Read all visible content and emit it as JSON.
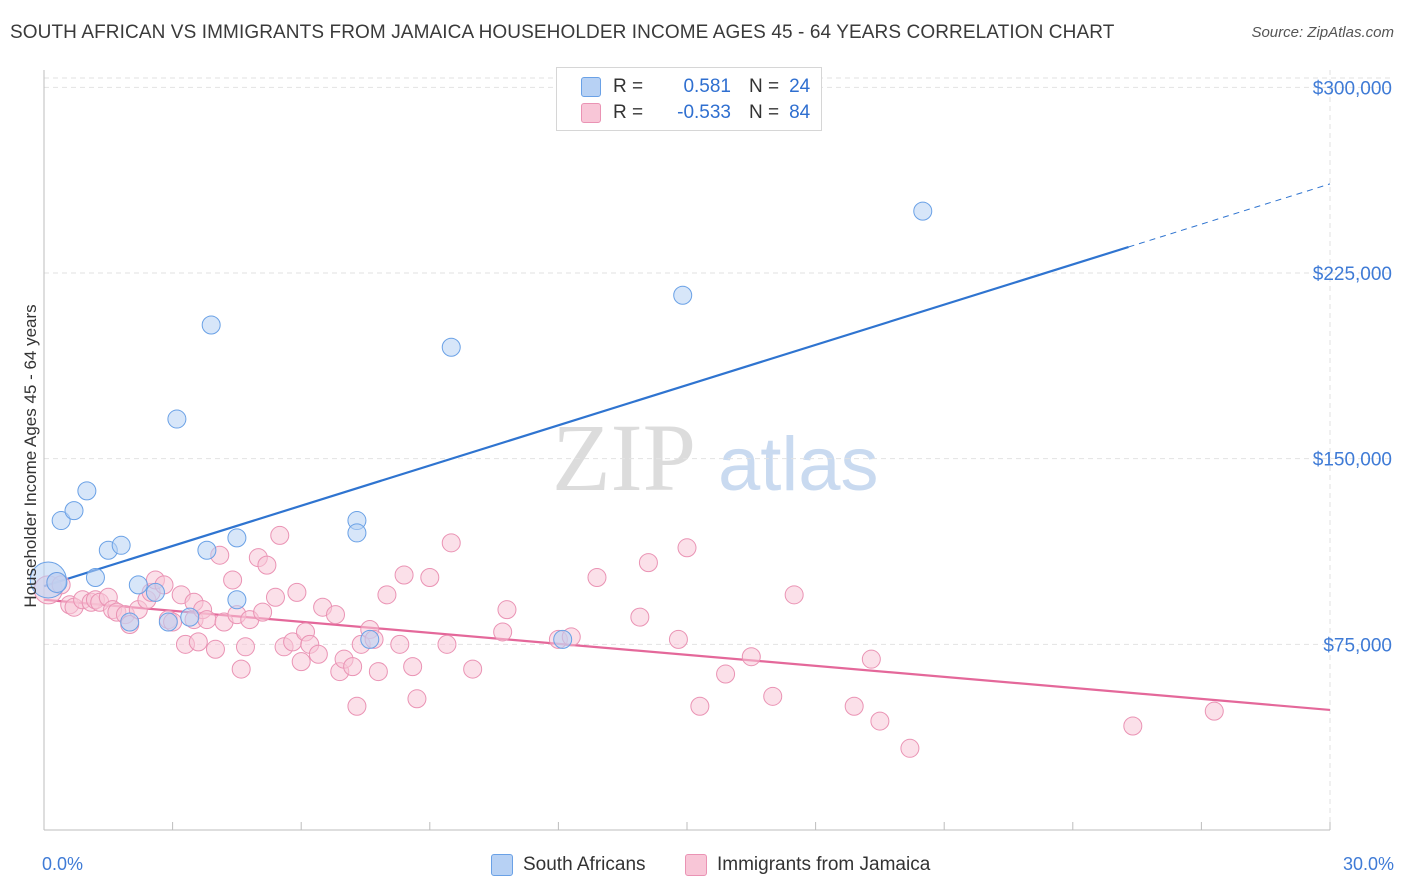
{
  "header": {
    "title": "SOUTH AFRICAN VS IMMIGRANTS FROM JAMAICA HOUSEHOLDER INCOME AGES 45 - 64 YEARS CORRELATION CHART",
    "source": "Source: ZipAtlas.com"
  },
  "watermark": {
    "zip": "ZIP",
    "atlas": "atlas"
  },
  "legend": {
    "rows": [
      {
        "r_label": "R =",
        "r_value": "0.581",
        "n_label": "N =",
        "n_value": "24",
        "color": "#6aa1e6",
        "fill": "#b7d1f4"
      },
      {
        "r_label": "R =",
        "r_value": "-0.533",
        "n_label": "N =",
        "n_value": "84",
        "color": "#ea93b4",
        "fill": "#f8c6d7"
      }
    ]
  },
  "bottom_legend": {
    "items": [
      {
        "label": "South Africans",
        "color": "#6aa1e6",
        "fill": "#b7d1f4"
      },
      {
        "label": "Immigrants from Jamaica",
        "color": "#ea93b4",
        "fill": "#f8c6d7"
      }
    ]
  },
  "chart_data": {
    "type": "scatter",
    "title": "SOUTH AFRICAN VS IMMIGRANTS FROM JAMAICA HOUSEHOLDER INCOME AGES 45 - 64 YEARS CORRELATION CHART",
    "xlabel": "",
    "ylabel": "Householder Income Ages 45 - 64 years",
    "xlim": [
      0,
      30
    ],
    "ylim": [
      0,
      307000
    ],
    "x_ticks": [
      {
        "value": 0,
        "label": "0.0%"
      },
      {
        "value": 30,
        "label": "30.0%"
      }
    ],
    "y_ticks": [
      {
        "value": 75000,
        "label": "$75,000"
      },
      {
        "value": 150000,
        "label": "$150,000"
      },
      {
        "value": 225000,
        "label": "$225,000"
      },
      {
        "value": 300000,
        "label": "$300,000"
      }
    ],
    "grid": true,
    "legend_position": "top-center",
    "series": [
      {
        "name": "South Africans",
        "color": "#6aa1e6",
        "fill": "#b7d1f4",
        "line_color": "#2f74d0",
        "trend": {
          "x0": 0,
          "y0": 98500,
          "x1": 25.3,
          "y1": 235500,
          "dashed_to_x": 30,
          "dashed_to_y": 261000
        },
        "points": [
          [
            0.1,
            101000,
            18
          ],
          [
            0.3,
            100000,
            10
          ],
          [
            0.4,
            125000,
            9
          ],
          [
            0.7,
            129000,
            9
          ],
          [
            1.0,
            137000,
            9
          ],
          [
            1.2,
            102000,
            9
          ],
          [
            1.5,
            113000,
            9
          ],
          [
            1.8,
            115000,
            9
          ],
          [
            2.0,
            84000,
            9
          ],
          [
            2.2,
            99000,
            9
          ],
          [
            2.6,
            96000,
            9
          ],
          [
            2.9,
            84000,
            9
          ],
          [
            3.1,
            166000,
            9
          ],
          [
            3.4,
            86000,
            9
          ],
          [
            3.8,
            113000,
            9
          ],
          [
            3.9,
            204000,
            9
          ],
          [
            4.5,
            93000,
            9
          ],
          [
            4.5,
            118000,
            9
          ],
          [
            7.3,
            125000,
            9
          ],
          [
            7.3,
            120000,
            9
          ],
          [
            7.6,
            77000,
            9
          ],
          [
            9.5,
            195000,
            9
          ],
          [
            12.1,
            77000,
            9
          ],
          [
            14.9,
            216000,
            9
          ],
          [
            20.5,
            250000,
            9
          ]
        ]
      },
      {
        "name": "Immigrants from Jamaica",
        "color": "#ea93b4",
        "fill": "#f8c6d7",
        "line_color": "#e4689a",
        "trend": {
          "x0": 0,
          "y0": 93000,
          "x1": 30,
          "y1": 48500
        },
        "points": [
          [
            0.1,
            97000,
            14
          ],
          [
            0.3,
            100000,
            10
          ],
          [
            0.4,
            99000,
            9
          ],
          [
            0.6,
            91000,
            9
          ],
          [
            0.7,
            90000,
            9
          ],
          [
            0.9,
            93000,
            9
          ],
          [
            1.1,
            92000,
            9
          ],
          [
            1.2,
            93000,
            9
          ],
          [
            1.3,
            92000,
            9
          ],
          [
            1.5,
            94000,
            9
          ],
          [
            1.6,
            89000,
            9
          ],
          [
            1.7,
            88000,
            9
          ],
          [
            1.9,
            87000,
            9
          ],
          [
            2.0,
            83000,
            9
          ],
          [
            2.2,
            89000,
            9
          ],
          [
            2.4,
            93000,
            9
          ],
          [
            2.5,
            96000,
            9
          ],
          [
            2.6,
            101000,
            9
          ],
          [
            2.8,
            99000,
            9
          ],
          [
            2.9,
            85000,
            9
          ],
          [
            3.0,
            84000,
            9
          ],
          [
            3.2,
            95000,
            9
          ],
          [
            3.3,
            75000,
            9
          ],
          [
            3.5,
            85000,
            9
          ],
          [
            3.5,
            92000,
            9
          ],
          [
            3.6,
            76000,
            9
          ],
          [
            3.7,
            89000,
            9
          ],
          [
            3.8,
            85000,
            9
          ],
          [
            4.0,
            73000,
            9
          ],
          [
            4.1,
            111000,
            9
          ],
          [
            4.2,
            84000,
            9
          ],
          [
            4.4,
            101000,
            9
          ],
          [
            4.5,
            87000,
            9
          ],
          [
            4.6,
            65000,
            9
          ],
          [
            4.7,
            74000,
            9
          ],
          [
            4.8,
            85000,
            9
          ],
          [
            5.0,
            110000,
            9
          ],
          [
            5.1,
            88000,
            9
          ],
          [
            5.2,
            107000,
            9
          ],
          [
            5.4,
            94000,
            9
          ],
          [
            5.5,
            119000,
            9
          ],
          [
            5.6,
            74000,
            9
          ],
          [
            5.8,
            76000,
            9
          ],
          [
            5.9,
            96000,
            9
          ],
          [
            6.0,
            68000,
            9
          ],
          [
            6.1,
            80000,
            9
          ],
          [
            6.2,
            75000,
            9
          ],
          [
            6.4,
            71000,
            9
          ],
          [
            6.5,
            90000,
            9
          ],
          [
            6.8,
            87000,
            9
          ],
          [
            6.9,
            64000,
            9
          ],
          [
            7.0,
            69000,
            9
          ],
          [
            7.2,
            66000,
            9
          ],
          [
            7.3,
            50000,
            9
          ],
          [
            7.4,
            75000,
            9
          ],
          [
            7.6,
            81000,
            9
          ],
          [
            7.7,
            77000,
            9
          ],
          [
            7.8,
            64000,
            9
          ],
          [
            8.0,
            95000,
            9
          ],
          [
            8.3,
            75000,
            9
          ],
          [
            8.4,
            103000,
            9
          ],
          [
            8.6,
            66000,
            9
          ],
          [
            8.7,
            53000,
            9
          ],
          [
            9.0,
            102000,
            9
          ],
          [
            9.4,
            75000,
            9
          ],
          [
            9.5,
            116000,
            9
          ],
          [
            10.0,
            65000,
            9
          ],
          [
            10.7,
            80000,
            9
          ],
          [
            10.8,
            89000,
            9
          ],
          [
            12.0,
            77000,
            9
          ],
          [
            12.3,
            78000,
            9
          ],
          [
            12.9,
            102000,
            9
          ],
          [
            13.9,
            86000,
            9
          ],
          [
            14.1,
            108000,
            9
          ],
          [
            14.8,
            77000,
            9
          ],
          [
            15.0,
            114000,
            9
          ],
          [
            15.3,
            50000,
            9
          ],
          [
            15.9,
            63000,
            9
          ],
          [
            16.5,
            70000,
            9
          ],
          [
            17.0,
            54000,
            9
          ],
          [
            17.5,
            95000,
            9
          ],
          [
            18.9,
            50000,
            9
          ],
          [
            19.3,
            69000,
            9
          ],
          [
            19.5,
            44000,
            9
          ],
          [
            20.2,
            33000,
            9
          ],
          [
            25.4,
            42000,
            9
          ],
          [
            27.3,
            48000,
            9
          ]
        ]
      }
    ]
  }
}
